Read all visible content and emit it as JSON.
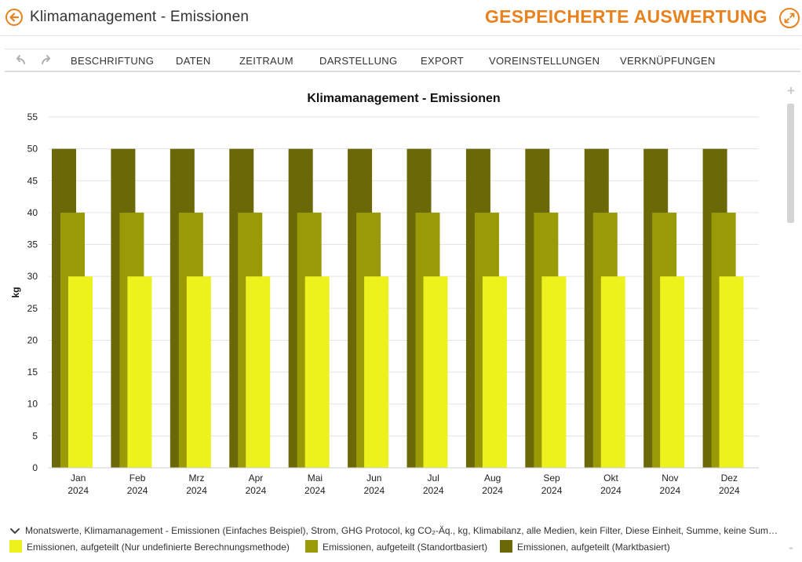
{
  "header": {
    "title": "Klimamanagement - Emissionen",
    "saved_label": "GESPEICHERTE AUSWERTUNG"
  },
  "toolbar": {
    "items": [
      "BESCHRIFTUNG",
      "DATEN",
      "ZEITRAUM",
      "DARSTELLUNG",
      "EXPORT",
      "VOREINSTELLUNGEN",
      "VERKNÜPFUNGEN"
    ]
  },
  "info_line": "Monatswerte, Klimamanagement - Emissionen (Einfaches Beispiel), Strom, GHG Protocol, kg CO₂-Äq., kg, Klimabilanz, alle Medien, kein Filter, Diese Einheit, Summe, keine Summe",
  "colors": {
    "accent": "#e8821e",
    "marktbasiert": "#6b6808",
    "standortbasiert": "#9a9a07",
    "undefiniert": "#eef21c"
  },
  "chart_data": {
    "type": "bar",
    "title": "Klimamanagement - Emissionen",
    "xlabel": "",
    "ylabel": "kg",
    "ylim": [
      0,
      55
    ],
    "yticks": [
      0,
      5,
      10,
      15,
      20,
      25,
      30,
      35,
      40,
      45,
      50,
      55
    ],
    "grid": true,
    "legend_position": "bottom",
    "categories": [
      {
        "month": "Jan",
        "year": "2024"
      },
      {
        "month": "Feb",
        "year": "2024"
      },
      {
        "month": "Mrz",
        "year": "2024"
      },
      {
        "month": "Apr",
        "year": "2024"
      },
      {
        "month": "Mai",
        "year": "2024"
      },
      {
        "month": "Jun",
        "year": "2024"
      },
      {
        "month": "Jul",
        "year": "2024"
      },
      {
        "month": "Aug",
        "year": "2024"
      },
      {
        "month": "Sep",
        "year": "2024"
      },
      {
        "month": "Okt",
        "year": "2024"
      },
      {
        "month": "Nov",
        "year": "2024"
      },
      {
        "month": "Dez",
        "year": "2024"
      }
    ],
    "series": [
      {
        "name": "Emissionen, aufgeteilt (Nur undefinierte Berechnungsmethode)",
        "color": "#eef21c",
        "values": [
          30,
          30,
          30,
          30,
          30,
          30,
          30,
          30,
          30,
          30,
          30,
          30
        ]
      },
      {
        "name": "Emissionen, aufgeteilt (Standortbasiert)",
        "color": "#9a9a07",
        "values": [
          40,
          40,
          40,
          40,
          40,
          40,
          40,
          40,
          40,
          40,
          40,
          40
        ]
      },
      {
        "name": "Emissionen, aufgeteilt (Marktbasiert)",
        "color": "#6b6808",
        "values": [
          50,
          50,
          50,
          50,
          50,
          50,
          50,
          50,
          50,
          50,
          50,
          50
        ]
      }
    ]
  }
}
